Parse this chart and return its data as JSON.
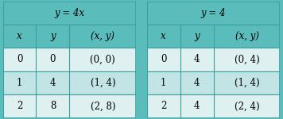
{
  "table1": {
    "title": "y = 4x",
    "headers": [
      "x",
      "y",
      "(x, y)"
    ],
    "rows": [
      [
        "0",
        "0",
        "(0, 0)"
      ],
      [
        "1",
        "4",
        "(1, 4)"
      ],
      [
        "2",
        "8",
        "(2, 8)"
      ]
    ]
  },
  "table2": {
    "title": "y = 4",
    "headers": [
      "x",
      "y",
      "(x, y)"
    ],
    "rows": [
      [
        "0",
        "4",
        "(0, 4)"
      ],
      [
        "1",
        "4",
        "(1, 4)"
      ],
      [
        "2",
        "4",
        "(2, 4)"
      ]
    ]
  },
  "header_bg": "#5bbcbc",
  "title_bg": "#5bbcbc",
  "row_bg_light": "#dff0f0",
  "row_bg_mid": "#c2e4e4",
  "border_color": "#38a0a0",
  "text_color": "#000000",
  "title_fontsize": 8.5,
  "header_fontsize": 8.5,
  "data_fontsize": 8.5,
  "fig_bg": "#5bbcbc"
}
